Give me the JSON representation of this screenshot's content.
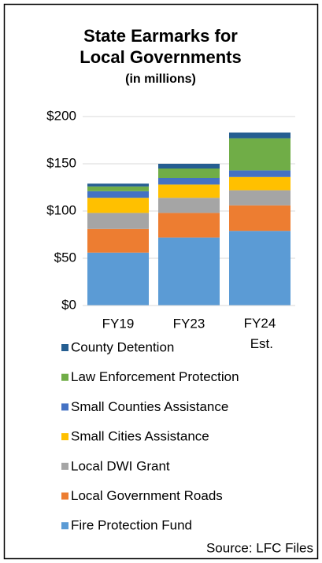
{
  "chart_data": {
    "type": "stacked_bar",
    "title": [
      "State Earmarks for",
      "Local Governments"
    ],
    "subtitle": "(in millions)",
    "categories": [
      "FY19",
      "FY23",
      "FY24 Est."
    ],
    "series": [
      {
        "name": "Fire Protection Fund",
        "color": "#5b9bd5",
        "values": [
          56,
          72,
          79
        ]
      },
      {
        "name": "Local Government Roads",
        "color": "#ed7d31",
        "values": [
          25,
          26,
          27
        ]
      },
      {
        "name": "Local DWI Grant",
        "color": "#a5a5a5",
        "values": [
          17,
          16,
          16
        ]
      },
      {
        "name": "Small Cities Assistance",
        "color": "#ffc000",
        "values": [
          16,
          14,
          14
        ]
      },
      {
        "name": "Small Counties Assistance",
        "color": "#4472c4",
        "values": [
          7,
          7,
          7
        ]
      },
      {
        "name": "Law Enforcement Protection",
        "color": "#70ad47",
        "values": [
          5,
          10,
          34
        ]
      },
      {
        "name": "County Detention",
        "color": "#255e91",
        "values": [
          3,
          5,
          6
        ]
      }
    ],
    "ylim": [
      0,
      200
    ],
    "yticks": [
      {
        "value": 0,
        "label": "$0"
      },
      {
        "value": 50,
        "label": "$50"
      },
      {
        "value": 100,
        "label": "$100"
      },
      {
        "value": 150,
        "label": "$150"
      },
      {
        "value": 200,
        "label": "$200"
      }
    ],
    "grid": true,
    "source": "Source: LFC Files"
  }
}
